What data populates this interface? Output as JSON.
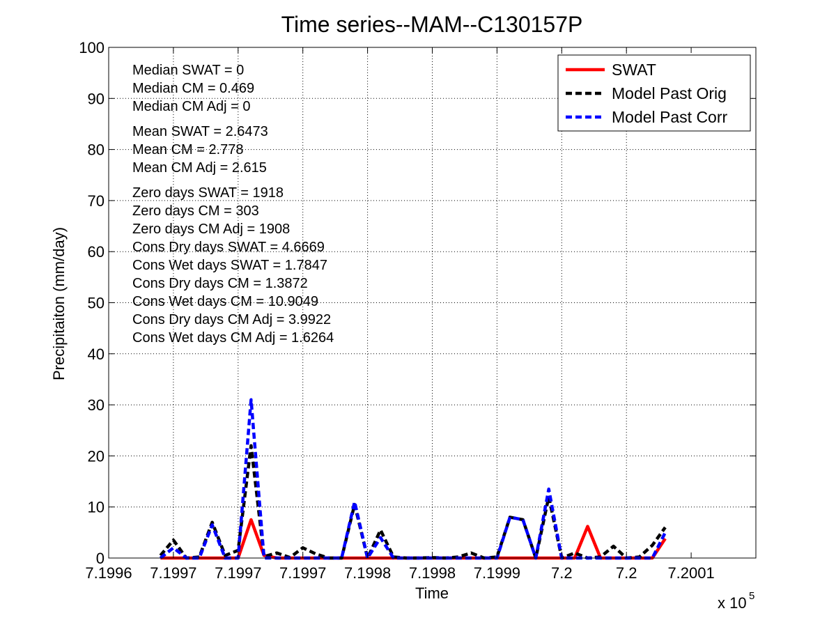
{
  "chart_data": {
    "type": "line",
    "title": "Time series--MAM--C130157P",
    "xlabel": "Time",
    "ylabel": "Precipitaiton (mm/day)",
    "x_multiplier": "x 10",
    "x_multiplier_exp": "5",
    "xlim": [
      719960,
      720010
    ],
    "ylim": [
      0,
      100
    ],
    "grid": true,
    "legend_position": "top-right",
    "x_ticks": [
      {
        "value": 719960,
        "label": "7.1996"
      },
      {
        "value": 719965,
        "label": "7.1997"
      },
      {
        "value": 719970,
        "label": "7.1997"
      },
      {
        "value": 719975,
        "label": "7.1997"
      },
      {
        "value": 719980,
        "label": "7.1998"
      },
      {
        "value": 719985,
        "label": "7.1998"
      },
      {
        "value": 719990,
        "label": "7.1999"
      },
      {
        "value": 719995,
        "label": "7.2"
      },
      {
        "value": 720000,
        "label": "7.2"
      },
      {
        "value": 720005,
        "label": "7.2001"
      }
    ],
    "y_ticks": [
      0,
      10,
      20,
      30,
      40,
      50,
      60,
      70,
      80,
      90,
      100
    ],
    "x": [
      719964,
      719965,
      719966,
      719967,
      719968,
      719969,
      719970,
      719971,
      719972,
      719973,
      719974,
      719975,
      719976,
      719977,
      719978,
      719979,
      719980,
      719981,
      719982,
      719983,
      719984,
      719985,
      719986,
      719987,
      719988,
      719989,
      719990,
      719991,
      719992,
      719993,
      719994,
      719995,
      719996,
      719997,
      719998,
      719999,
      720000,
      720001,
      720002,
      720003
    ],
    "series": [
      {
        "name": "SWAT",
        "color": "#ff0000",
        "dash": "solid",
        "values": [
          0,
          0,
          0,
          0,
          0,
          0,
          0,
          7.5,
          0.5,
          0,
          0,
          0,
          0,
          0,
          0,
          0,
          0,
          0,
          0,
          0,
          0,
          0,
          0,
          0,
          0,
          0,
          0,
          0,
          0,
          0,
          0,
          0,
          0,
          6.2,
          0,
          0,
          0,
          0,
          0,
          3.8
        ]
      },
      {
        "name": "Model Past Orig",
        "color": "#000000",
        "dash": "dashed",
        "values": [
          0.5,
          3.5,
          0,
          0.2,
          7,
          0.5,
          1.5,
          22,
          0.3,
          1,
          0.1,
          2,
          0.8,
          0,
          0,
          10.5,
          0,
          5.5,
          0.2,
          0,
          0,
          0.1,
          0,
          0.2,
          1,
          0,
          0.2,
          8,
          7.5,
          0,
          12,
          0,
          1,
          0,
          0.2,
          2.3,
          0,
          0.2,
          2.5,
          6
        ]
      },
      {
        "name": "Model Past Corr",
        "color": "#0000ff",
        "dash": "dashed",
        "values": [
          0,
          2,
          0,
          0,
          6.5,
          0,
          0,
          31,
          0,
          0,
          0,
          0,
          0,
          0,
          0,
          11,
          0,
          4,
          0,
          0,
          0,
          0,
          0,
          0,
          0,
          0,
          0,
          8,
          7.5,
          0,
          13.5,
          0,
          0,
          0,
          0,
          0,
          0,
          0,
          0,
          5
        ]
      }
    ],
    "annotations": [
      [
        "Median SWAT = 0",
        "Median CM = 0.469",
        "Median CM Adj = 0"
      ],
      [
        "Mean SWAT = 2.6473",
        "Mean CM = 2.778",
        "Mean CM Adj = 2.615"
      ],
      [
        "Zero days SWAT = 1918",
        "Zero days CM = 303",
        "Zero days CM Adj = 1908",
        "Cons Dry days SWAT = 4.6669",
        "Cons Wet days SWAT = 1.7847",
        "Cons Dry days CM = 1.3872",
        "Cons Wet days CM = 10.9049",
        "Cons Dry days CM Adj = 3.9922",
        "Cons Wet days CM Adj = 1.6264"
      ]
    ]
  }
}
